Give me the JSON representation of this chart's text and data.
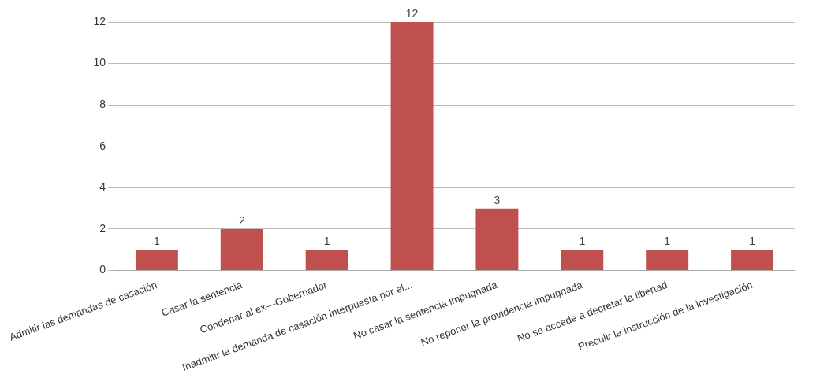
{
  "chart_data": {
    "type": "bar",
    "categories": [
      "Admitir las demandas de casación",
      "Casar la sentencia",
      "Condenar al ex—Gobernador",
      "Inadmitir la demanda de casación interpuesta por el...",
      "No casar la sentencia impugnada",
      "No reponer la providencia impugnada",
      "No se accede a decretar la libertad",
      "Preculir la instrucción de la investigación"
    ],
    "values": [
      1,
      2,
      1,
      12,
      3,
      1,
      1,
      1
    ],
    "color": "#c0504d",
    "ylim": [
      0,
      12
    ],
    "yticks": [
      0,
      2,
      4,
      6,
      8,
      10,
      12
    ],
    "grid": "y",
    "data_labels": true,
    "legend": false
  }
}
